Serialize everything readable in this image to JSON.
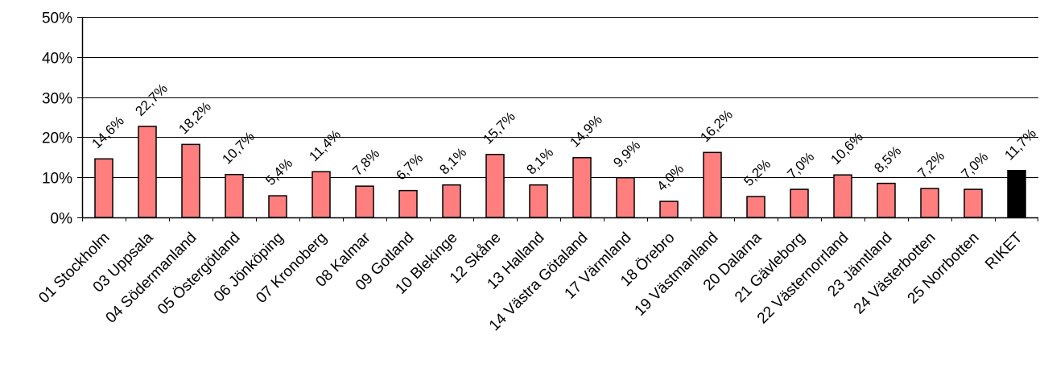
{
  "chart_data": {
    "type": "bar",
    "categories": [
      "01 Stockholm",
      "03 Uppsala",
      "04 Södermanland",
      "05 Östergötland",
      "06 Jönköping",
      "07 Kronoberg",
      "08 Kalmar",
      "09 Gotland",
      "10 Blekinge",
      "12 Skåne",
      "13 Halland",
      "14 Västra Götaland",
      "17 Värmland",
      "18 Örebro",
      "19 Västmanland",
      "20 Dalarna",
      "21 Gävleborg",
      "22 Västernorrland",
      "23 Jämtland",
      "24 Västerbotten",
      "25 Norrbotten",
      "RIKET"
    ],
    "values": [
      14.6,
      22.7,
      18.2,
      10.7,
      5.4,
      11.4,
      7.8,
      6.7,
      8.1,
      15.7,
      8.1,
      14.9,
      9.9,
      4.0,
      16.2,
      5.2,
      7.0,
      10.6,
      8.5,
      7.2,
      7.0,
      11.7
    ],
    "data_labels": [
      "14,6%",
      "22,7%",
      "18,2%",
      "10,7%",
      "5,4%",
      "11,4%",
      "7,8%",
      "6,7%",
      "8,1%",
      "15,7%",
      "8,1%",
      "14,9%",
      "9,9%",
      "4,0%",
      "16,2%",
      "5,2%",
      "7,0%",
      "10,6%",
      "8,5%",
      "7,2%",
      "7,0%",
      "11,7%"
    ],
    "ylim": [
      0,
      50
    ],
    "y_ticks": [
      0,
      10,
      20,
      30,
      40,
      50
    ],
    "y_tick_labels": [
      "0%",
      "10%",
      "20%",
      "30%",
      "40%",
      "50%"
    ],
    "grid": true,
    "legend": "none",
    "title": "",
    "xlabel": "",
    "ylabel": "",
    "colors": {
      "bar": "#ff7f7f",
      "highlight_bar": "#000000",
      "bar_edge": "#000000",
      "grid": "#000000",
      "axis": "#000000"
    },
    "highlight_category": "RIKET"
  }
}
